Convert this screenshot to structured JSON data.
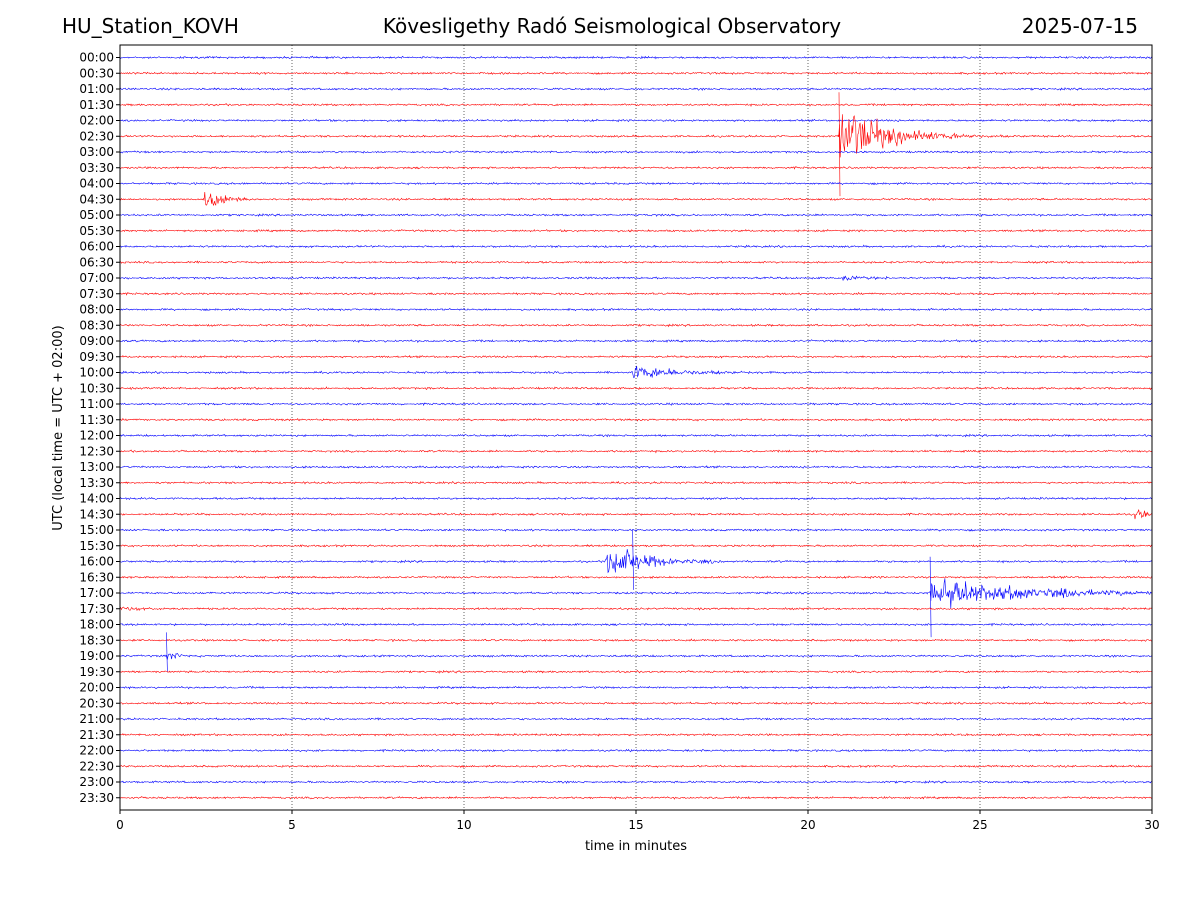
{
  "header": {
    "station": "HU_Station_KOVH",
    "title": "Kövesligethy Radó Seismological Observatory",
    "date": "2025-07-15"
  },
  "chart_data": {
    "type": "line",
    "title": "Kövesligethy Radó Seismological Observatory",
    "xlabel": "time in minutes",
    "ylabel": "UTC (local time = UTC + 02:00)",
    "xlim": [
      0,
      30
    ],
    "xticks": [
      0,
      5,
      10,
      15,
      20,
      25,
      30
    ],
    "vgrid": [
      5,
      10,
      15,
      20,
      25
    ],
    "colors": [
      "#0000ff",
      "#ff0000"
    ],
    "rows": [
      "00:00",
      "00:30",
      "01:00",
      "01:30",
      "02:00",
      "02:30",
      "03:00",
      "03:30",
      "04:00",
      "04:30",
      "05:00",
      "05:30",
      "06:00",
      "06:30",
      "07:00",
      "07:30",
      "08:00",
      "08:30",
      "09:00",
      "09:30",
      "10:00",
      "10:30",
      "11:00",
      "11:30",
      "12:00",
      "12:30",
      "13:00",
      "13:30",
      "14:00",
      "14:30",
      "15:00",
      "15:30",
      "16:00",
      "16:30",
      "17:00",
      "17:30",
      "18:00",
      "18:30",
      "19:00",
      "19:30",
      "20:00",
      "20:30",
      "21:00",
      "21:30",
      "22:00",
      "22:30",
      "23:00",
      "23:30"
    ],
    "events": [
      {
        "row": "02:30",
        "start_min": 20.9,
        "peak": 2.8,
        "decay_min": 1.2,
        "duration_min": 5.5,
        "spike_up": 2.8,
        "spike_down": 3.8
      },
      {
        "row": "02:30",
        "start_min": 24.2,
        "peak": 0.5,
        "decay_min": 0.3,
        "duration_min": 0.6
      },
      {
        "row": "04:30",
        "start_min": 2.45,
        "peak": 0.9,
        "decay_min": 0.5,
        "duration_min": 1.3
      },
      {
        "row": "07:00",
        "start_min": 21.0,
        "peak": 0.2,
        "decay_min": 1.0,
        "duration_min": 2.2
      },
      {
        "row": "10:00",
        "start_min": 14.9,
        "peak": 0.6,
        "decay_min": 1.5,
        "duration_min": 5.5
      },
      {
        "row": "14:30",
        "start_min": 29.5,
        "peak": 0.5,
        "decay_min": 0.5,
        "duration_min": 0.5
      },
      {
        "row": "16:00",
        "start_min": 14.1,
        "peak": 1.4,
        "decay_min": 1.2,
        "duration_min": 3.5,
        "spike_up": 2.0,
        "spike_down": 1.8,
        "spike_at": 14.9
      },
      {
        "row": "17:00",
        "start_min": 23.55,
        "peak": 1.2,
        "decay_min": 3.0,
        "duration_min": 6.45,
        "spike_up": 2.3,
        "spike_down": 2.8
      },
      {
        "row": "17:30",
        "start_min": 0.0,
        "peak": 0.15,
        "decay_min": 1.5,
        "duration_min": 1.2
      },
      {
        "row": "19:00",
        "start_min": 1.35,
        "peak": 0.7,
        "decay_min": 0.25,
        "duration_min": 1.8,
        "spike_up": 1.5,
        "spike_down": 1.0
      }
    ]
  }
}
